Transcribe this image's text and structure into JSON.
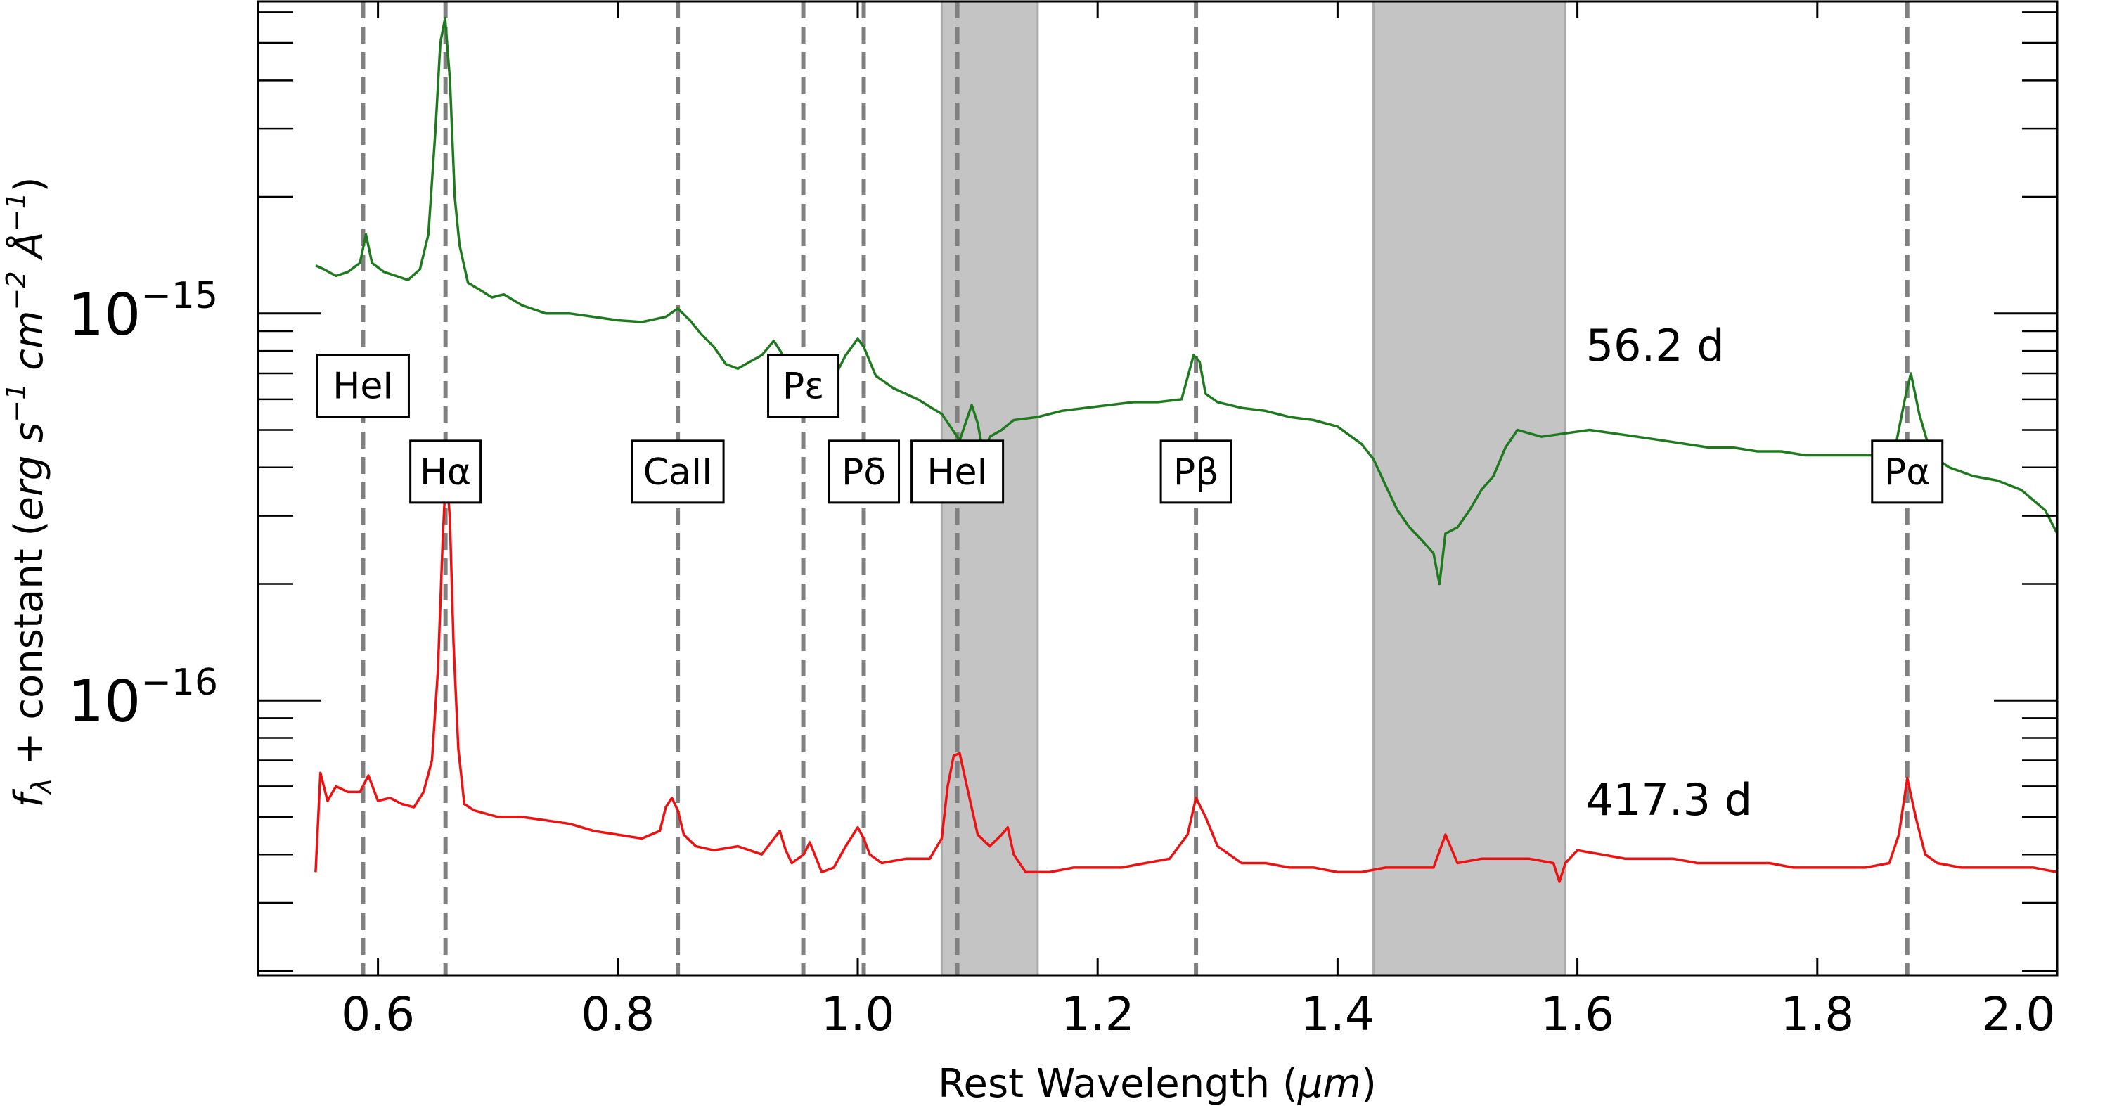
{
  "chart_data": {
    "type": "line",
    "xlabel_text": "Rest Wavelength (",
    "xlabel_unit": "μm",
    "xlabel_close": ")",
    "ylabel_f": "f",
    "ylabel_sub": "λ",
    "ylabel_mid": " + constant (",
    "ylabel_unit_erg": "erg s",
    "ylabel_exp1": "−1",
    "ylabel_cm": " cm",
    "ylabel_exp2": "−2",
    "ylabel_A": " Å",
    "ylabel_exp3": "−1",
    "ylabel_close": ")",
    "xlim": [
      0.5,
      2.0
    ],
    "ylim": [
      1.95e-17,
      6.4e-15
    ],
    "yscale": "log",
    "grid": false,
    "x_ticks": [
      0.6,
      0.8,
      1.0,
      1.2,
      1.4,
      1.6,
      1.8,
      2.0
    ],
    "x_tick_labels": [
      "0.6",
      "0.8",
      "1.0",
      "1.2",
      "1.4",
      "1.6",
      "1.8",
      "2.0"
    ],
    "y_major_ticks": [
      1e-16,
      1e-15
    ],
    "y_tick_labels": [
      {
        "base": "10",
        "exp": "−16"
      },
      {
        "base": "10",
        "exp": "−15"
      }
    ],
    "y_minor_ticks": [
      2e-17,
      3e-17,
      4e-17,
      5e-17,
      6e-17,
      7e-17,
      8e-17,
      9e-17,
      2e-16,
      3e-16,
      4e-16,
      5e-16,
      6e-16,
      7e-16,
      8e-16,
      9e-16,
      2e-15,
      3e-15,
      4e-15,
      5e-15,
      6e-15
    ],
    "telluric_bands": [
      [
        1.07,
        1.15
      ],
      [
        1.43,
        1.59
      ]
    ],
    "line_markers": [
      {
        "name": "HeI",
        "x": 0.5876,
        "label_y": 6.5e-16
      },
      {
        "name": "Hα",
        "x": 0.6563,
        "label_y": 3.9e-16
      },
      {
        "name": "CaII",
        "x": 0.85,
        "label_y": 3.9e-16
      },
      {
        "name": "Pε",
        "x": 0.9546,
        "label_y": 6.5e-16
      },
      {
        "name": "Pδ",
        "x": 1.005,
        "label_y": 3.9e-16
      },
      {
        "name": "HeI",
        "x": 1.083,
        "label_y": 3.9e-16
      },
      {
        "name": "Pβ",
        "x": 1.282,
        "label_y": 3.9e-16
      },
      {
        "name": "Pα",
        "x": 1.875,
        "label_y": 3.9e-16
      }
    ],
    "series": [
      {
        "color": "#1f7a1f",
        "label": "56.2 d",
        "label_pos": [
          1.6,
          8.2e-16
        ],
        "x": [
          0.548,
          0.555,
          0.565,
          0.575,
          0.585,
          0.59,
          0.595,
          0.605,
          0.615,
          0.625,
          0.635,
          0.642,
          0.648,
          0.652,
          0.656,
          0.66,
          0.664,
          0.668,
          0.675,
          0.685,
          0.695,
          0.705,
          0.72,
          0.74,
          0.76,
          0.78,
          0.8,
          0.82,
          0.84,
          0.85,
          0.86,
          0.87,
          0.88,
          0.89,
          0.9,
          0.91,
          0.92,
          0.93,
          0.94,
          0.95,
          0.96,
          0.97,
          0.98,
          0.99,
          1.0,
          1.005,
          1.015,
          1.03,
          1.05,
          1.07,
          1.085,
          1.095,
          1.1,
          1.105,
          1.11,
          1.12,
          1.13,
          1.15,
          1.17,
          1.19,
          1.21,
          1.23,
          1.25,
          1.27,
          1.28,
          1.285,
          1.29,
          1.3,
          1.32,
          1.34,
          1.36,
          1.38,
          1.4,
          1.42,
          1.43,
          1.44,
          1.45,
          1.46,
          1.47,
          1.48,
          1.485,
          1.49,
          1.5,
          1.51,
          1.52,
          1.53,
          1.54,
          1.55,
          1.57,
          1.59,
          1.61,
          1.63,
          1.65,
          1.67,
          1.69,
          1.71,
          1.73,
          1.75,
          1.77,
          1.79,
          1.81,
          1.83,
          1.85,
          1.865,
          1.873,
          1.878,
          1.885,
          1.895,
          1.91,
          1.93,
          1.95,
          1.97,
          1.99,
          2.0
        ],
        "y": [
          1.33e-15,
          1.3e-15,
          1.25e-15,
          1.28e-15,
          1.35e-15,
          1.6e-15,
          1.35e-15,
          1.28e-15,
          1.25e-15,
          1.22e-15,
          1.3e-15,
          1.6e-15,
          3e-15,
          5e-15,
          5.8e-15,
          4e-15,
          2e-15,
          1.5e-15,
          1.2e-15,
          1.15e-15,
          1.1e-15,
          1.12e-15,
          1.05e-15,
          1e-15,
          1e-15,
          9.8e-16,
          9.6e-16,
          9.5e-16,
          9.8e-16,
          1.03e-15,
          9.6e-16,
          8.8e-16,
          8.2e-16,
          7.4e-16,
          7.2e-16,
          7.5e-16,
          7.8e-16,
          8.5e-16,
          7.6e-16,
          7.4e-16,
          6.8e-16,
          6.6e-16,
          6.8e-16,
          7.8e-16,
          8.6e-16,
          8.2e-16,
          6.9e-16,
          6.4e-16,
          6e-16,
          5.5e-16,
          4.7e-16,
          5.8e-16,
          5.2e-16,
          4.3e-16,
          4.8e-16,
          5e-16,
          5.3e-16,
          5.4e-16,
          5.6e-16,
          5.7e-16,
          5.8e-16,
          5.9e-16,
          5.9e-16,
          6e-16,
          7.8e-16,
          7.5e-16,
          6.2e-16,
          5.9e-16,
          5.7e-16,
          5.6e-16,
          5.4e-16,
          5.3e-16,
          5.1e-16,
          4.6e-16,
          4.2e-16,
          3.6e-16,
          3.1e-16,
          2.8e-16,
          2.6e-16,
          2.4e-16,
          2e-16,
          2.7e-16,
          2.8e-16,
          3.1e-16,
          3.5e-16,
          3.8e-16,
          4.5e-16,
          5e-16,
          4.8e-16,
          4.9e-16,
          5e-16,
          4.9e-16,
          4.8e-16,
          4.7e-16,
          4.6e-16,
          4.5e-16,
          4.5e-16,
          4.4e-16,
          4.4e-16,
          4.3e-16,
          4.3e-16,
          4.3e-16,
          4.3e-16,
          4.5e-16,
          6e-16,
          7e-16,
          5.5e-16,
          4.3e-16,
          4e-16,
          3.8e-16,
          3.7e-16,
          3.5e-16,
          3.1e-16,
          2.7e-16
        ]
      },
      {
        "color": "#ee1111",
        "label": "417.3 d",
        "label_pos": [
          1.6,
          5.5e-17
        ],
        "x": [
          0.548,
          0.552,
          0.558,
          0.565,
          0.575,
          0.585,
          0.592,
          0.6,
          0.61,
          0.62,
          0.63,
          0.638,
          0.645,
          0.65,
          0.654,
          0.657,
          0.66,
          0.663,
          0.667,
          0.672,
          0.68,
          0.7,
          0.72,
          0.74,
          0.76,
          0.78,
          0.8,
          0.82,
          0.835,
          0.84,
          0.845,
          0.85,
          0.855,
          0.865,
          0.88,
          0.9,
          0.92,
          0.935,
          0.94,
          0.945,
          0.955,
          0.96,
          0.97,
          0.98,
          0.99,
          1.0,
          1.005,
          1.01,
          1.02,
          1.04,
          1.06,
          1.07,
          1.075,
          1.08,
          1.085,
          1.09,
          1.1,
          1.11,
          1.12,
          1.125,
          1.13,
          1.14,
          1.16,
          1.18,
          1.2,
          1.22,
          1.24,
          1.26,
          1.275,
          1.282,
          1.29,
          1.3,
          1.32,
          1.34,
          1.36,
          1.38,
          1.4,
          1.42,
          1.44,
          1.46,
          1.48,
          1.49,
          1.5,
          1.52,
          1.54,
          1.56,
          1.58,
          1.585,
          1.59,
          1.6,
          1.62,
          1.64,
          1.66,
          1.68,
          1.7,
          1.72,
          1.74,
          1.76,
          1.78,
          1.8,
          1.82,
          1.84,
          1.86,
          1.868,
          1.875,
          1.882,
          1.89,
          1.9,
          1.92,
          1.94,
          1.96,
          1.98,
          2.0
        ],
        "y": [
          3.6e-17,
          6.5e-17,
          5.5e-17,
          6e-17,
          5.8e-17,
          5.8e-17,
          6.4e-17,
          5.5e-17,
          5.6e-17,
          5.4e-17,
          5.3e-17,
          5.8e-17,
          7e-17,
          1.2e-16,
          2.6e-16,
          4.1e-16,
          2.9e-16,
          1.4e-16,
          7.5e-17,
          5.4e-17,
          5.2e-17,
          5e-17,
          5e-17,
          4.9e-17,
          4.8e-17,
          4.6e-17,
          4.5e-17,
          4.4e-17,
          4.6e-17,
          5.3e-17,
          5.6e-17,
          5.2e-17,
          4.5e-17,
          4.2e-17,
          4.1e-17,
          4.2e-17,
          4e-17,
          4.6e-17,
          4.1e-17,
          3.8e-17,
          4e-17,
          4.3e-17,
          3.6e-17,
          3.7e-17,
          4.2e-17,
          4.7e-17,
          4.4e-17,
          4e-17,
          3.8e-17,
          3.9e-17,
          3.9e-17,
          4.4e-17,
          6e-17,
          7.2e-17,
          7.3e-17,
          6.2e-17,
          4.5e-17,
          4.2e-17,
          4.5e-17,
          4.7e-17,
          4e-17,
          3.6e-17,
          3.6e-17,
          3.7e-17,
          3.7e-17,
          3.7e-17,
          3.8e-17,
          3.9e-17,
          4.5e-17,
          5.6e-17,
          5e-17,
          4.2e-17,
          3.8e-17,
          3.8e-17,
          3.7e-17,
          3.7e-17,
          3.6e-17,
          3.6e-17,
          3.7e-17,
          3.7e-17,
          3.7e-17,
          4.5e-17,
          3.8e-17,
          3.9e-17,
          3.9e-17,
          3.9e-17,
          3.8e-17,
          3.4e-17,
          3.8e-17,
          4.1e-17,
          4e-17,
          3.9e-17,
          3.9e-17,
          3.9e-17,
          3.8e-17,
          3.8e-17,
          3.8e-17,
          3.8e-17,
          3.7e-17,
          3.7e-17,
          3.7e-17,
          3.7e-17,
          3.8e-17,
          4.5e-17,
          6.3e-17,
          5e-17,
          4e-17,
          3.8e-17,
          3.7e-17,
          3.7e-17,
          3.7e-17,
          3.7e-17,
          3.6e-17
        ]
      }
    ]
  }
}
